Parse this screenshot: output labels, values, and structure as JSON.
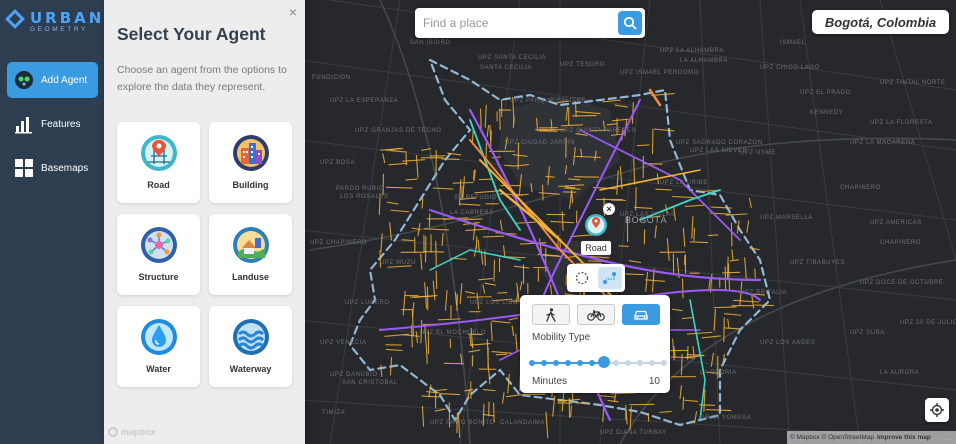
{
  "app": {
    "logo_text": "URBAN",
    "logo_subtext": "GEOMETRY"
  },
  "sidebar": {
    "items": [
      {
        "label": "Add Agent",
        "icon": "add-agent-icon",
        "active": true
      },
      {
        "label": "Features",
        "icon": "bar-chart-icon",
        "active": false
      },
      {
        "label": "Basemaps",
        "icon": "grid-icon",
        "active": false
      }
    ]
  },
  "agent_panel": {
    "title": "Select Your Agent",
    "description": "Choose an agent from the options to explore the data they represent.",
    "close_symbol": "×",
    "agents": [
      {
        "label": "Road",
        "icon": "road-pin-icon"
      },
      {
        "label": "Building",
        "icon": "building-icon"
      },
      {
        "label": "Structure",
        "icon": "network-structure-icon"
      },
      {
        "label": "Landuse",
        "icon": "landuse-icon"
      },
      {
        "label": "Water",
        "icon": "water-drop-icon"
      },
      {
        "label": "Waterway",
        "icon": "waves-icon"
      }
    ]
  },
  "search": {
    "placeholder": "Find a place"
  },
  "city": {
    "name": "Bogotá, Colombia"
  },
  "marker": {
    "label": "Road",
    "close_symbol": "×"
  },
  "mobility": {
    "title": "Mobility Type",
    "modes": [
      "walk-icon",
      "bicycle-icon",
      "car-icon"
    ],
    "active_mode": "car-icon",
    "minutes_label": "Minutes",
    "minutes_value": "10",
    "slider_steps": 12,
    "slider_position_step": 6
  },
  "attribution": {
    "text": "© Mapbox © OpenStreetMap",
    "improve": "Improve this map"
  },
  "mapbox_logo": "mapbox",
  "map_place_labels": [
    "FUNDICION",
    "UPZ SANTA CECILIA",
    "SANTA CECILIA",
    "UPZ LA ALHAMBRA",
    "LA ALHAMBRA",
    "UPZ CHICO LAGO",
    "UPZ LA ESPERANZA",
    "UPZ PARQUE SALITRE",
    "UPZ GRANJAS DE TECHO",
    "UPZ QUINTA PAREDES",
    "UPZ CIUDAD JARDIN",
    "UPZ SAGRADO CORAZON",
    "UPZ LAS NIEVES",
    "UPZ LA MACARENA",
    "CHAPINERO",
    "PARDO RUBIO",
    "LOS ROSALES",
    "EL REFUGIO",
    "LA CABRERA",
    "UPZ CHAPINERO",
    "UPZ LAS VILLAS",
    "UPZ LA FLORESTA",
    "UPZ EL PRADO",
    "UPZ BRITALIA",
    "UPZ VENECIA",
    "UPZ DANUBIO",
    "SAN CRISTOBAL",
    "TIMIZA",
    "UPZ PATIO BONITO",
    "CALANDAIMA",
    "KENNEDY",
    "UPZ AMERICAS",
    "UPZ MARSELLA",
    "UPZ TIBABUYES",
    "UPZ SUBA",
    "LA AURORA",
    "UPZ LUCERO",
    "UPZ EL MOCHUELO",
    "UPZ LOS LIBERTADORES",
    "GRAN YOMASA",
    "UPZ USME",
    "UPZ 20 DE JULIO",
    "UPZ DIANA TURBAY",
    "UPZ MUZU",
    "UPZ BOSA",
    "UPZ TINTAL NORTE",
    "UPZ ISMAEL PERDOMO",
    "ISMAEL",
    "UPZ TESORO",
    "LA GLORIA",
    "UPZ DOCE DE OCTUBRE",
    "UPZ LOS ANDES",
    "SAN ISIDRO",
    "UPZ LA URIBE",
    "CHAPINERO",
    "BOGOTÁ"
  ],
  "colors": {
    "accent": "#3b9be0",
    "sidebar_bg": "#2c3e50",
    "panel_bg": "#ededed",
    "map_bg": "#26282b",
    "road_primary": "#f2b134",
    "road_secondary": "#9b59f5",
    "road_tertiary": "#3fd6c4",
    "road_dashed": "#9ec7e8",
    "road_orange": "#f28a3a"
  }
}
